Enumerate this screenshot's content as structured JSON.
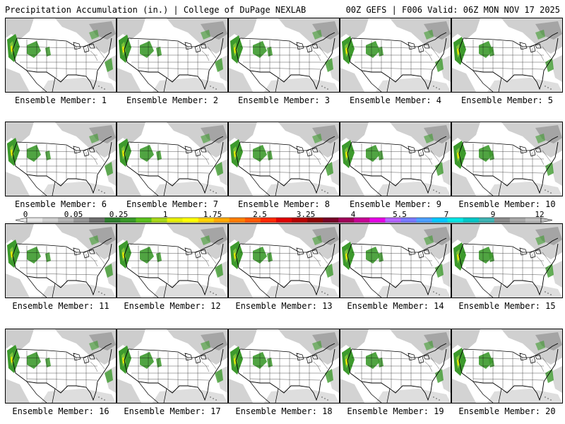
{
  "header": {
    "left_title": "Precipitation Accumulation (in.) | College of DuPage NEXLAB",
    "right_title": "00Z GEFS | F006 Valid: 06Z MON NOV 17 2025"
  },
  "panels": [
    {
      "label": "Ensemble Member: 1"
    },
    {
      "label": "Ensemble Member: 2"
    },
    {
      "label": "Ensemble Member: 3"
    },
    {
      "label": "Ensemble Member: 4"
    },
    {
      "label": "Ensemble Member: 5"
    },
    {
      "label": "Ensemble Member: 6"
    },
    {
      "label": "Ensemble Member: 7"
    },
    {
      "label": "Ensemble Member: 8"
    },
    {
      "label": "Ensemble Member: 9"
    },
    {
      "label": "Ensemble Member: 10"
    },
    {
      "label": "Ensemble Member: 11"
    },
    {
      "label": "Ensemble Member: 12"
    },
    {
      "label": "Ensemble Member: 13"
    },
    {
      "label": "Ensemble Member: 14"
    },
    {
      "label": "Ensemble Member: 15"
    },
    {
      "label": "Ensemble Member: 16"
    },
    {
      "label": "Ensemble Member: 17"
    },
    {
      "label": "Ensemble Member: 18"
    },
    {
      "label": "Ensemble Member: 19"
    },
    {
      "label": "Ensemble Member: 20"
    }
  ],
  "colorbar": {
    "tick_labels": [
      "0",
      "0.05",
      "0.25",
      "1",
      "1.75",
      "2.5",
      "3.25",
      "4",
      "5.5",
      "7",
      "9",
      "12"
    ],
    "colors": [
      "#e6e6e6",
      "#cfcfcf",
      "#b4b4b4",
      "#969696",
      "#6e6e6e",
      "#2f7f2f",
      "#3a9a2a",
      "#5cc11e",
      "#a8d81a",
      "#e8f000",
      "#ffff00",
      "#ffd400",
      "#ffaa00",
      "#ff7f00",
      "#ff5a00",
      "#ff2a00",
      "#e00000",
      "#b80000",
      "#900000",
      "#780028",
      "#a0005a",
      "#c80096",
      "#e600e6",
      "#b464ff",
      "#7a7aff",
      "#4ea0ff",
      "#00c8ff",
      "#00e6e6",
      "#00c8c8",
      "#40b4b4",
      "#8c8c8c",
      "#a8a8a8",
      "#bcbcbc"
    ]
  }
}
